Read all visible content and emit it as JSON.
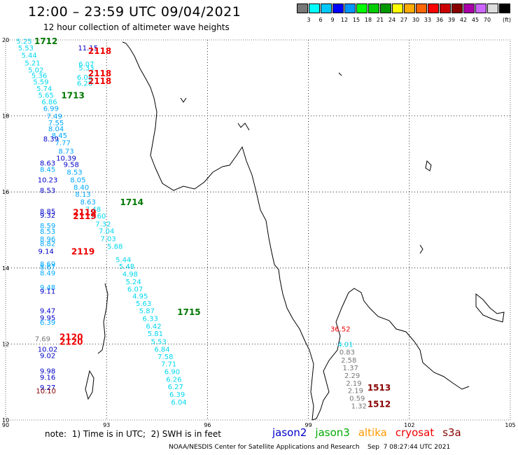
{
  "header": {
    "title": "12:00 – 23:59 UTC 09/04/2021",
    "subtitle": "12 hour collection of altimeter wave heights"
  },
  "colorbar": {
    "unit": "(ft)",
    "labels": [
      "3",
      "6",
      "9",
      "12",
      "15",
      "18",
      "21",
      "24",
      "27",
      "30",
      "33",
      "36",
      "39",
      "42",
      "45",
      "70"
    ],
    "colors": [
      "#777777",
      "#00ffff",
      "#00c8ff",
      "#0000ff",
      "#0096ff",
      "#00ff00",
      "#00cc00",
      "#009900",
      "#ffff00",
      "#ffaa00",
      "#ff6600",
      "#ff0000",
      "#cc0000",
      "#880000",
      "#aa00aa",
      "#cc66ff",
      "#dddddd",
      "#000000"
    ]
  },
  "map": {
    "lon_min": 90,
    "lon_max": 105,
    "lat_min": 10,
    "lat_max": 20,
    "lon_ticks": [
      "90",
      "93",
      "96",
      "99",
      "102",
      "105"
    ],
    "lat_ticks": [
      "20",
      "18",
      "16",
      "14",
      "12",
      "10"
    ]
  },
  "measurements": [
    {
      "t": "5.25",
      "lon": 90.55,
      "lat": 19.97,
      "c": "#00d8f0"
    },
    {
      "t": "5.53",
      "lon": 90.6,
      "lat": 19.8,
      "c": "#00d8f0"
    },
    {
      "t": "5.44",
      "lon": 90.7,
      "lat": 19.6,
      "c": "#00d8f0"
    },
    {
      "t": "5.21",
      "lon": 90.8,
      "lat": 19.4,
      "c": "#00d8f0"
    },
    {
      "t": "5.02",
      "lon": 90.9,
      "lat": 19.22,
      "c": "#00d8f0"
    },
    {
      "t": "5.36",
      "lon": 91.0,
      "lat": 19.07,
      "c": "#00d8f0"
    },
    {
      "t": "5.59",
      "lon": 91.05,
      "lat": 18.9,
      "c": "#00d8f0"
    },
    {
      "t": "5.74",
      "lon": 91.15,
      "lat": 18.73,
      "c": "#00d8f0"
    },
    {
      "t": "5.65",
      "lon": 91.2,
      "lat": 18.55,
      "c": "#00d8f0"
    },
    {
      "t": "6.86",
      "lon": 91.3,
      "lat": 18.38,
      "c": "#00d8f0"
    },
    {
      "t": "6.99",
      "lon": 91.35,
      "lat": 18.2,
      "c": "#00a8ff"
    },
    {
      "t": "7.49",
      "lon": 91.45,
      "lat": 18.0,
      "c": "#00a8ff"
    },
    {
      "t": "7.55",
      "lon": 91.5,
      "lat": 17.83,
      "c": "#00a8ff"
    },
    {
      "t": "8.04",
      "lon": 91.5,
      "lat": 17.67,
      "c": "#00a8ff"
    },
    {
      "t": "8.45",
      "lon": 91.6,
      "lat": 17.5,
      "c": "#00a8ff"
    },
    {
      "t": "8.39",
      "lon": 91.35,
      "lat": 17.4,
      "c": "#0000c8"
    },
    {
      "t": "7.77",
      "lon": 91.7,
      "lat": 17.3,
      "c": "#00a8ff"
    },
    {
      "t": "8.73",
      "lon": 91.8,
      "lat": 17.08,
      "c": "#00a8ff"
    },
    {
      "t": "10.39",
      "lon": 91.8,
      "lat": 16.9,
      "c": "#0000c8"
    },
    {
      "t": "8.63",
      "lon": 91.25,
      "lat": 16.77,
      "c": "#0000c8"
    },
    {
      "t": "9.58",
      "lon": 91.95,
      "lat": 16.73,
      "c": "#0000c8"
    },
    {
      "t": "8.45",
      "lon": 91.25,
      "lat": 16.6,
      "c": "#00a8ff"
    },
    {
      "t": "8.53",
      "lon": 92.05,
      "lat": 16.53,
      "c": "#00a8ff"
    },
    {
      "t": "8.05",
      "lon": 92.15,
      "lat": 16.33,
      "c": "#00a8ff"
    },
    {
      "t": "10.23",
      "lon": 91.25,
      "lat": 16.33,
      "c": "#0000c8"
    },
    {
      "t": "8.40",
      "lon": 92.25,
      "lat": 16.13,
      "c": "#00a8ff"
    },
    {
      "t": "8.53",
      "lon": 91.25,
      "lat": 16.05,
      "c": "#0000c8"
    },
    {
      "t": "8.13",
      "lon": 92.3,
      "lat": 15.95,
      "c": "#00a8ff"
    },
    {
      "t": "8.63",
      "lon": 92.45,
      "lat": 15.75,
      "c": "#00a8ff"
    },
    {
      "t": "7.48",
      "lon": 92.6,
      "lat": 15.55,
      "c": "#00d8f0"
    },
    {
      "t": "8.85",
      "lon": 91.25,
      "lat": 15.5,
      "c": "#0000c8"
    },
    {
      "t": "9.32",
      "lon": 91.25,
      "lat": 15.4,
      "c": "#0000c8"
    },
    {
      "t": "7.60",
      "lon": 92.75,
      "lat": 15.38,
      "c": "#00d8f0"
    },
    {
      "t": "7.32",
      "lon": 92.9,
      "lat": 15.17,
      "c": "#00d8f0"
    },
    {
      "t": "8.59",
      "lon": 91.25,
      "lat": 15.12,
      "c": "#00a8ff"
    },
    {
      "t": "7.04",
      "lon": 93.0,
      "lat": 14.98,
      "c": "#00d8f0"
    },
    {
      "t": "8.53",
      "lon": 91.25,
      "lat": 14.97,
      "c": "#00a8ff"
    },
    {
      "t": "8.96",
      "lon": 91.25,
      "lat": 14.77,
      "c": "#00a8ff"
    },
    {
      "t": "7.03",
      "lon": 93.05,
      "lat": 14.78,
      "c": "#00d8f0"
    },
    {
      "t": "8.82",
      "lon": 91.25,
      "lat": 14.65,
      "c": "#00a8ff"
    },
    {
      "t": "5.88",
      "lon": 93.25,
      "lat": 14.58,
      "c": "#00d8f0"
    },
    {
      "t": "9.14",
      "lon": 91.2,
      "lat": 14.45,
      "c": "#0000c8"
    },
    {
      "t": "5.44",
      "lon": 93.5,
      "lat": 14.23,
      "c": "#00d8f0"
    },
    {
      "t": "8.69",
      "lon": 91.25,
      "lat": 14.12,
      "c": "#00a8ff"
    },
    {
      "t": "5.48",
      "lon": 93.6,
      "lat": 14.05,
      "c": "#00d8f0"
    },
    {
      "t": "8.67",
      "lon": 91.25,
      "lat": 14.03,
      "c": "#00a8ff"
    },
    {
      "t": "8.49",
      "lon": 91.25,
      "lat": 13.88,
      "c": "#00a8ff"
    },
    {
      "t": "4.98",
      "lon": 93.7,
      "lat": 13.85,
      "c": "#00d8f0"
    },
    {
      "t": "5.24",
      "lon": 93.8,
      "lat": 13.65,
      "c": "#00d8f0"
    },
    {
      "t": "9.48",
      "lon": 91.25,
      "lat": 13.5,
      "c": "#00a8ff"
    },
    {
      "t": "6.07",
      "lon": 93.85,
      "lat": 13.45,
      "c": "#00d8f0"
    },
    {
      "t": "9.11",
      "lon": 91.25,
      "lat": 13.4,
      "c": "#0000c8"
    },
    {
      "t": "4.95",
      "lon": 94.0,
      "lat": 13.27,
      "c": "#00d8f0"
    },
    {
      "t": "5.63",
      "lon": 94.1,
      "lat": 13.08,
      "c": "#00d8f0"
    },
    {
      "t": "5.87",
      "lon": 94.2,
      "lat": 12.88,
      "c": "#00d8f0"
    },
    {
      "t": "9.47",
      "lon": 91.25,
      "lat": 12.88,
      "c": "#0000c8"
    },
    {
      "t": "6.33",
      "lon": 94.3,
      "lat": 12.68,
      "c": "#00d8f0"
    },
    {
      "t": "9.95",
      "lon": 91.25,
      "lat": 12.7,
      "c": "#0000c8"
    },
    {
      "t": "6.39",
      "lon": 91.25,
      "lat": 12.58,
      "c": "#00a8ff"
    },
    {
      "t": "6.42",
      "lon": 94.4,
      "lat": 12.48,
      "c": "#00d8f0"
    },
    {
      "t": "5.81",
      "lon": 94.45,
      "lat": 12.28,
      "c": "#00d8f0"
    },
    {
      "t": "7.69",
      "lon": 91.1,
      "lat": 12.15,
      "c": "#777777"
    },
    {
      "t": "5.53",
      "lon": 94.55,
      "lat": 12.07,
      "c": "#00d8f0"
    },
    {
      "t": "6.84",
      "lon": 94.65,
      "lat": 11.87,
      "c": "#00d8f0"
    },
    {
      "t": "10.02",
      "lon": 91.25,
      "lat": 11.87,
      "c": "#0000c8"
    },
    {
      "t": "7.58",
      "lon": 94.75,
      "lat": 11.68,
      "c": "#00d8f0"
    },
    {
      "t": "9.02",
      "lon": 91.25,
      "lat": 11.7,
      "c": "#0000c8"
    },
    {
      "t": "7.71",
      "lon": 94.85,
      "lat": 11.48,
      "c": "#00d8f0"
    },
    {
      "t": "9.98",
      "lon": 91.25,
      "lat": 11.3,
      "c": "#0000c8"
    },
    {
      "t": "6.90",
      "lon": 94.95,
      "lat": 11.28,
      "c": "#00d8f0"
    },
    {
      "t": "9.16",
      "lon": 91.25,
      "lat": 11.13,
      "c": "#0000c8"
    },
    {
      "t": "6.26",
      "lon": 95.0,
      "lat": 11.08,
      "c": "#00d8f0"
    },
    {
      "t": "9.27",
      "lon": 91.25,
      "lat": 10.87,
      "c": "#0000c8"
    },
    {
      "t": "6.27",
      "lon": 95.05,
      "lat": 10.88,
      "c": "#00d8f0"
    },
    {
      "t": "10.10",
      "lon": 91.2,
      "lat": 10.77,
      "c": "#880000"
    },
    {
      "t": "6.39",
      "lon": 95.1,
      "lat": 10.68,
      "c": "#00d8f0"
    },
    {
      "t": "6.04",
      "lon": 95.15,
      "lat": 10.48,
      "c": "#00d8f0"
    },
    {
      "t": "11.15",
      "lon": 92.45,
      "lat": 19.8,
      "c": "#0000c8"
    },
    {
      "t": "6.07",
      "lon": 92.4,
      "lat": 19.37,
      "c": "#00d8f0"
    },
    {
      "t": "5.33",
      "lon": 92.4,
      "lat": 19.27,
      "c": "#00d8f0"
    },
    {
      "t": "6.08",
      "lon": 92.35,
      "lat": 19.02,
      "c": "#00d8f0"
    },
    {
      "t": "6.28",
      "lon": 92.35,
      "lat": 18.87,
      "c": "#00d8f0"
    },
    {
      "t": "36.52",
      "lon": 99.95,
      "lat": 12.4,
      "c": "#ee0000"
    },
    {
      "t": "4.01",
      "lon": 100.1,
      "lat": 12.0,
      "c": "#00d8f0"
    },
    {
      "t": "0.83",
      "lon": 100.15,
      "lat": 11.8,
      "c": "#777777"
    },
    {
      "t": "2.58",
      "lon": 100.2,
      "lat": 11.58,
      "c": "#777777"
    },
    {
      "t": "1.37",
      "lon": 100.25,
      "lat": 11.38,
      "c": "#777777"
    },
    {
      "t": "2.29",
      "lon": 100.3,
      "lat": 11.18,
      "c": "#777777"
    },
    {
      "t": "2.19",
      "lon": 100.35,
      "lat": 10.98,
      "c": "#777777"
    },
    {
      "t": "2.19",
      "lon": 100.4,
      "lat": 10.78,
      "c": "#777777"
    },
    {
      "t": "0.59",
      "lon": 100.45,
      "lat": 10.58,
      "c": "#777777"
    },
    {
      "t": "1.32",
      "lon": 100.5,
      "lat": 10.38,
      "c": "#777777"
    }
  ],
  "passes": [
    {
      "t": "1712",
      "lon": 91.2,
      "lat": 19.98,
      "c": "#007700"
    },
    {
      "t": "2118",
      "lon": 92.8,
      "lat": 19.72,
      "c": "#ee0000"
    },
    {
      "t": "2118",
      "lon": 92.8,
      "lat": 19.13,
      "c": "#ee0000"
    },
    {
      "t": "2118",
      "lon": 92.8,
      "lat": 18.93,
      "c": "#ee0000"
    },
    {
      "t": "1713",
      "lon": 92.0,
      "lat": 18.55,
      "c": "#007700"
    },
    {
      "t": "1714",
      "lon": 93.75,
      "lat": 15.75,
      "c": "#007700"
    },
    {
      "t": "2119",
      "lon": 92.35,
      "lat": 15.48,
      "c": "#ee0000"
    },
    {
      "t": "2119",
      "lon": 92.35,
      "lat": 15.38,
      "c": "#ee0000"
    },
    {
      "t": "2119",
      "lon": 92.3,
      "lat": 14.45,
      "c": "#ee0000"
    },
    {
      "t": "1715",
      "lon": 95.45,
      "lat": 12.85,
      "c": "#007700"
    },
    {
      "t": "2120",
      "lon": 91.95,
      "lat": 12.2,
      "c": "#ee0000"
    },
    {
      "t": "2120",
      "lon": 91.95,
      "lat": 12.07,
      "c": "#ee0000"
    },
    {
      "t": "1513",
      "lon": 101.1,
      "lat": 10.87,
      "c": "#880000"
    },
    {
      "t": "1512",
      "lon": 101.1,
      "lat": 10.43,
      "c": "#880000"
    }
  ],
  "footer": {
    "note": "note:  1) Time is in UTC;  2) SWH is in feet",
    "legend": [
      {
        "name": "jason2",
        "color": "#0000cc"
      },
      {
        "name": "jason3",
        "color": "#00aa00"
      },
      {
        "name": "altika",
        "color": "#ff9900"
      },
      {
        "name": "cryosat",
        "color": "#ee0000"
      },
      {
        "name": "s3a",
        "color": "#880000"
      }
    ],
    "credit": "NOAA/NESDIS Center for Satellite Applications and Research    Sep  7 08:27:44 UTC 2021"
  }
}
